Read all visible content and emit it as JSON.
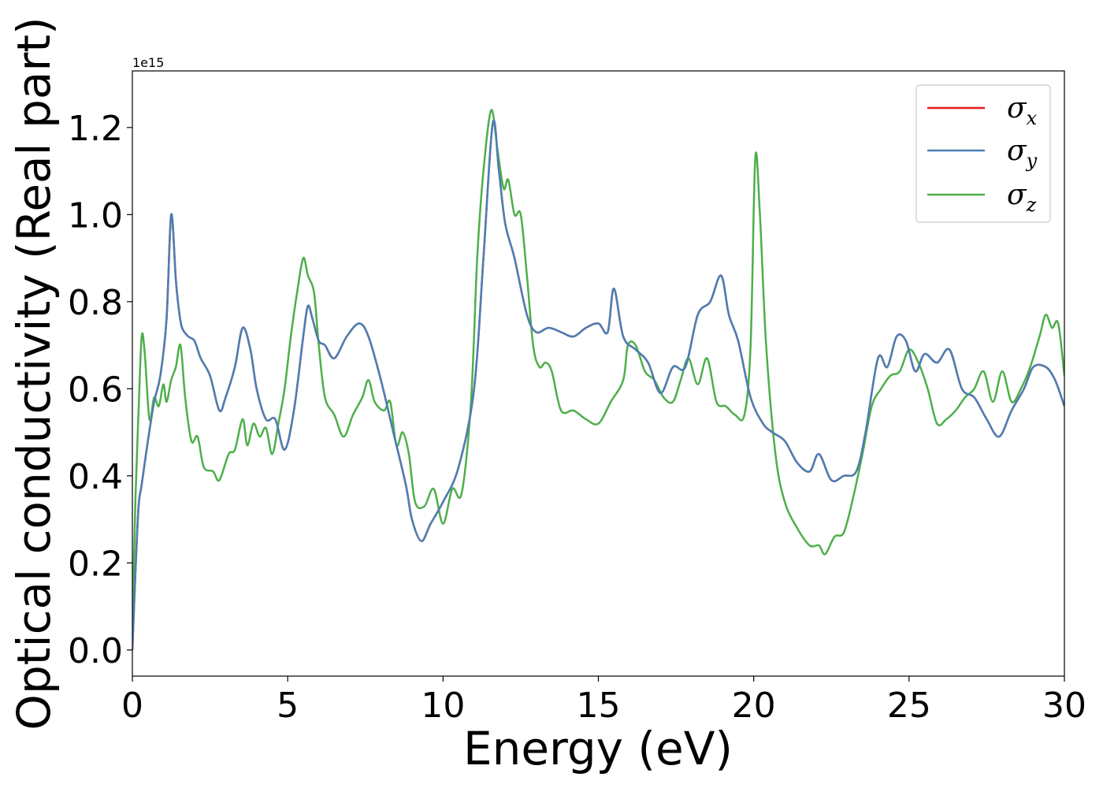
{
  "chart_data": {
    "type": "line",
    "xlabel": "Energy (eV)",
    "ylabel": "Optical conductivity (Real part)",
    "y_offset_label": "1e15",
    "xlim": [
      0,
      30
    ],
    "ylim": [
      -0.06,
      1.33
    ],
    "xticks": [
      0,
      5,
      10,
      15,
      20,
      25,
      30
    ],
    "xtick_labels": [
      "0",
      "5",
      "10",
      "15",
      "20",
      "25",
      "30"
    ],
    "yticks": [
      0.0,
      0.2,
      0.4,
      0.6,
      0.8,
      1.0,
      1.2
    ],
    "ytick_labels": [
      "0.0",
      "0.2",
      "0.4",
      "0.6",
      "0.8",
      "1.0",
      "1.2"
    ],
    "grid": false,
    "legend_position": "top-right",
    "series": [
      {
        "name": "σx",
        "legend_symbol": "σ",
        "legend_sub": "x",
        "color": "#e41a1c",
        "x": [
          0,
          0.1,
          0.2,
          0.3,
          0.5,
          0.7,
          0.9,
          1.1,
          1.25,
          1.4,
          1.5,
          1.6,
          1.8,
          2.0,
          2.2,
          2.5,
          2.8,
          3.0,
          3.3,
          3.55,
          3.8,
          4.0,
          4.3,
          4.6,
          4.9,
          5.2,
          5.5,
          5.65,
          5.8,
          6.0,
          6.2,
          6.5,
          6.9,
          7.3,
          7.6,
          8.0,
          8.4,
          8.8,
          9.0,
          9.3,
          9.6,
          10.0,
          10.5,
          11.0,
          11.3,
          11.6,
          11.8,
          12.0,
          12.3,
          12.7,
          13.0,
          13.4,
          13.8,
          14.2,
          14.6,
          15.0,
          15.3,
          15.5,
          15.8,
          16.2,
          16.6,
          17.0,
          17.4,
          17.8,
          18.2,
          18.6,
          18.95,
          19.2,
          19.5,
          19.9,
          20.3,
          20.6,
          21.0,
          21.4,
          21.8,
          22.1,
          22.5,
          22.9,
          23.3,
          23.6,
          24.0,
          24.3,
          24.6,
          24.9,
          25.2,
          25.5,
          25.9,
          26.3,
          26.7,
          27.1,
          27.5,
          27.9,
          28.3,
          28.7,
          29.0,
          29.4,
          29.7,
          30.0
        ],
        "y": [
          0.0,
          0.18,
          0.33,
          0.38,
          0.48,
          0.57,
          0.63,
          0.76,
          1.0,
          0.85,
          0.78,
          0.74,
          0.72,
          0.71,
          0.67,
          0.63,
          0.55,
          0.58,
          0.65,
          0.74,
          0.69,
          0.6,
          0.53,
          0.53,
          0.46,
          0.55,
          0.72,
          0.79,
          0.76,
          0.71,
          0.7,
          0.67,
          0.72,
          0.75,
          0.72,
          0.62,
          0.5,
          0.38,
          0.3,
          0.25,
          0.29,
          0.34,
          0.42,
          0.6,
          0.9,
          1.21,
          1.1,
          0.98,
          0.9,
          0.77,
          0.73,
          0.74,
          0.73,
          0.72,
          0.74,
          0.75,
          0.73,
          0.83,
          0.72,
          0.69,
          0.66,
          0.59,
          0.65,
          0.65,
          0.77,
          0.8,
          0.86,
          0.77,
          0.71,
          0.58,
          0.52,
          0.5,
          0.48,
          0.43,
          0.41,
          0.45,
          0.39,
          0.4,
          0.41,
          0.5,
          0.67,
          0.65,
          0.72,
          0.71,
          0.64,
          0.68,
          0.66,
          0.69,
          0.6,
          0.58,
          0.53,
          0.49,
          0.55,
          0.6,
          0.65,
          0.65,
          0.62,
          0.56
        ]
      },
      {
        "name": "σy",
        "legend_symbol": "σ",
        "legend_sub": "y",
        "color": "#4a7fb5",
        "x": [
          0,
          0.1,
          0.2,
          0.3,
          0.5,
          0.7,
          0.9,
          1.1,
          1.25,
          1.4,
          1.5,
          1.6,
          1.8,
          2.0,
          2.2,
          2.5,
          2.8,
          3.0,
          3.3,
          3.55,
          3.8,
          4.0,
          4.3,
          4.6,
          4.9,
          5.2,
          5.5,
          5.65,
          5.8,
          6.0,
          6.2,
          6.5,
          6.9,
          7.3,
          7.6,
          8.0,
          8.4,
          8.8,
          9.0,
          9.3,
          9.6,
          10.0,
          10.5,
          11.0,
          11.3,
          11.6,
          11.8,
          12.0,
          12.3,
          12.7,
          13.0,
          13.4,
          13.8,
          14.2,
          14.6,
          15.0,
          15.3,
          15.5,
          15.8,
          16.2,
          16.6,
          17.0,
          17.4,
          17.8,
          18.2,
          18.6,
          18.95,
          19.2,
          19.5,
          19.9,
          20.3,
          20.6,
          21.0,
          21.4,
          21.8,
          22.1,
          22.5,
          22.9,
          23.3,
          23.6,
          24.0,
          24.3,
          24.6,
          24.9,
          25.2,
          25.5,
          25.9,
          26.3,
          26.7,
          27.1,
          27.5,
          27.9,
          28.3,
          28.7,
          29.0,
          29.4,
          29.7,
          30.0
        ],
        "y": [
          0.0,
          0.18,
          0.33,
          0.38,
          0.48,
          0.57,
          0.63,
          0.76,
          1.0,
          0.85,
          0.78,
          0.74,
          0.72,
          0.71,
          0.67,
          0.63,
          0.55,
          0.58,
          0.65,
          0.74,
          0.69,
          0.6,
          0.53,
          0.53,
          0.46,
          0.55,
          0.72,
          0.79,
          0.76,
          0.71,
          0.7,
          0.67,
          0.72,
          0.75,
          0.72,
          0.62,
          0.5,
          0.38,
          0.3,
          0.25,
          0.29,
          0.34,
          0.42,
          0.6,
          0.9,
          1.21,
          1.1,
          0.98,
          0.9,
          0.77,
          0.73,
          0.74,
          0.73,
          0.72,
          0.74,
          0.75,
          0.73,
          0.83,
          0.72,
          0.69,
          0.66,
          0.59,
          0.65,
          0.65,
          0.77,
          0.8,
          0.86,
          0.77,
          0.71,
          0.58,
          0.52,
          0.5,
          0.48,
          0.43,
          0.41,
          0.45,
          0.39,
          0.4,
          0.41,
          0.5,
          0.67,
          0.65,
          0.72,
          0.71,
          0.64,
          0.68,
          0.66,
          0.69,
          0.6,
          0.58,
          0.53,
          0.49,
          0.55,
          0.6,
          0.65,
          0.65,
          0.62,
          0.56
        ]
      },
      {
        "name": "σz",
        "legend_symbol": "σ",
        "legend_sub": "z",
        "color": "#4daf4a",
        "x": [
          0,
          0.1,
          0.2,
          0.3,
          0.4,
          0.55,
          0.7,
          0.85,
          1.0,
          1.1,
          1.25,
          1.4,
          1.55,
          1.7,
          1.9,
          2.1,
          2.3,
          2.6,
          2.8,
          3.1,
          3.3,
          3.55,
          3.7,
          3.9,
          4.1,
          4.3,
          4.5,
          4.7,
          4.9,
          5.1,
          5.3,
          5.5,
          5.65,
          5.85,
          6.0,
          6.2,
          6.5,
          6.8,
          7.1,
          7.4,
          7.6,
          7.8,
          8.1,
          8.3,
          8.5,
          8.7,
          8.9,
          9.1,
          9.4,
          9.7,
          10.0,
          10.3,
          10.6,
          10.9,
          11.1,
          11.3,
          11.55,
          11.75,
          11.95,
          12.1,
          12.3,
          12.5,
          12.7,
          12.9,
          13.1,
          13.3,
          13.5,
          13.8,
          14.2,
          14.6,
          15.0,
          15.4,
          15.8,
          15.95,
          16.2,
          16.5,
          16.8,
          17.1,
          17.4,
          17.65,
          17.9,
          18.2,
          18.5,
          18.8,
          19.1,
          19.4,
          19.7,
          19.9,
          20.05,
          20.2,
          20.4,
          20.7,
          21.0,
          21.4,
          21.8,
          22.1,
          22.3,
          22.6,
          22.9,
          23.2,
          23.5,
          23.8,
          24.1,
          24.4,
          24.7,
          25.0,
          25.3,
          25.6,
          25.9,
          26.2,
          26.5,
          26.8,
          27.1,
          27.4,
          27.7,
          28.0,
          28.3,
          28.6,
          28.9,
          29.2,
          29.4,
          29.6,
          29.8,
          30.0
        ],
        "y": [
          0.05,
          0.35,
          0.55,
          0.72,
          0.68,
          0.53,
          0.58,
          0.56,
          0.61,
          0.57,
          0.62,
          0.65,
          0.7,
          0.58,
          0.48,
          0.49,
          0.42,
          0.41,
          0.39,
          0.45,
          0.46,
          0.53,
          0.47,
          0.52,
          0.49,
          0.51,
          0.45,
          0.52,
          0.6,
          0.72,
          0.82,
          0.9,
          0.86,
          0.82,
          0.7,
          0.58,
          0.54,
          0.49,
          0.54,
          0.58,
          0.62,
          0.57,
          0.55,
          0.57,
          0.47,
          0.5,
          0.45,
          0.34,
          0.33,
          0.37,
          0.29,
          0.37,
          0.36,
          0.57,
          0.9,
          1.1,
          1.24,
          1.15,
          1.06,
          1.08,
          1.0,
          1.0,
          0.86,
          0.7,
          0.65,
          0.66,
          0.64,
          0.55,
          0.55,
          0.53,
          0.52,
          0.57,
          0.62,
          0.7,
          0.7,
          0.64,
          0.62,
          0.58,
          0.57,
          0.62,
          0.67,
          0.61,
          0.67,
          0.57,
          0.56,
          0.54,
          0.54,
          0.7,
          1.13,
          1.0,
          0.7,
          0.45,
          0.34,
          0.28,
          0.24,
          0.24,
          0.22,
          0.26,
          0.27,
          0.35,
          0.45,
          0.56,
          0.6,
          0.63,
          0.64,
          0.69,
          0.66,
          0.6,
          0.52,
          0.53,
          0.55,
          0.58,
          0.6,
          0.64,
          0.57,
          0.64,
          0.57,
          0.6,
          0.65,
          0.72,
          0.77,
          0.74,
          0.75,
          0.63
        ]
      }
    ]
  }
}
